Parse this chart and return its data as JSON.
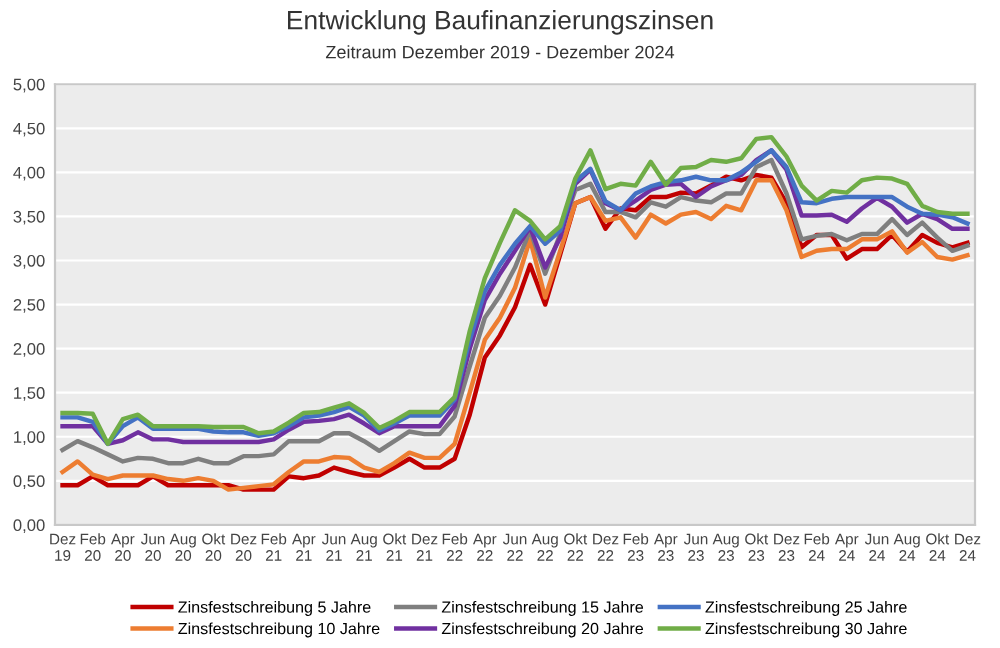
{
  "chart_data": {
    "type": "line",
    "title": "Entwicklung Baufinanzierungszinsen",
    "subtitle": "Zeitraum Dezember 2019 - Dezember 2024",
    "categories": [
      "Dez\n19",
      null,
      "Feb\n20",
      null,
      "Apr\n20",
      null,
      "Jun\n20",
      null,
      "Aug\n20",
      null,
      "Okt\n20",
      null,
      "Dez\n20",
      null,
      "Feb\n21",
      null,
      "Apr\n21",
      null,
      "Jun\n21",
      null,
      "Aug\n21",
      null,
      "Okt\n21",
      null,
      "Dez\n21",
      null,
      "Feb\n22",
      null,
      "Apr\n22",
      null,
      "Jun\n22",
      null,
      "Aug\n22",
      null,
      "Okt\n22",
      null,
      "Dez\n22",
      null,
      "Feb\n23",
      null,
      "Apr\n23",
      null,
      "Jun\n23",
      null,
      "Aug\n23",
      null,
      "Okt\n23",
      null,
      "Dez\n23",
      null,
      "Feb\n24",
      null,
      "Apr\n24",
      null,
      "Jun\n24",
      null,
      "Aug\n24",
      null,
      "Okt\n24",
      null,
      "Dez\n24"
    ],
    "series": [
      {
        "name": "Zinsfestschreibung 5 Jahre",
        "color": "#c00000",
        "values": [
          0.45,
          0.45,
          0.55,
          0.45,
          0.45,
          0.45,
          0.55,
          0.45,
          0.45,
          0.45,
          0.45,
          0.45,
          0.4,
          0.4,
          0.4,
          0.55,
          0.53,
          0.56,
          0.65,
          0.6,
          0.56,
          0.56,
          0.65,
          0.75,
          0.65,
          0.65,
          0.75,
          1.25,
          1.9,
          2.15,
          2.47,
          2.95,
          2.5,
          3.07,
          3.65,
          3.72,
          3.36,
          3.59,
          3.57,
          3.72,
          3.72,
          3.77,
          3.76,
          3.85,
          3.95,
          3.91,
          3.97,
          3.94,
          3.65,
          3.15,
          3.29,
          3.29,
          3.02,
          3.13,
          3.13,
          3.29,
          3.1,
          3.29,
          3.2,
          3.15,
          3.2
        ]
      },
      {
        "name": "Zinsfestschreibung 10 Jahre",
        "color": "#ed7d31",
        "values": [
          0.6,
          0.72,
          0.57,
          0.52,
          0.56,
          0.56,
          0.56,
          0.52,
          0.5,
          0.53,
          0.5,
          0.4,
          0.42,
          0.44,
          0.46,
          0.6,
          0.72,
          0.72,
          0.77,
          0.76,
          0.65,
          0.6,
          0.7,
          0.82,
          0.76,
          0.76,
          0.92,
          1.5,
          2.1,
          2.35,
          2.69,
          3.24,
          2.58,
          3.11,
          3.65,
          3.72,
          3.45,
          3.49,
          3.26,
          3.52,
          3.42,
          3.52,
          3.55,
          3.47,
          3.62,
          3.57,
          3.91,
          3.91,
          3.57,
          3.04,
          3.11,
          3.13,
          3.13,
          3.24,
          3.24,
          3.33,
          3.09,
          3.21,
          3.04,
          3.01,
          3.06
        ]
      },
      {
        "name": "Zinsfestschreibung 15 Jahre",
        "color": "#7f7f7f",
        "values": [
          0.85,
          0.95,
          0.88,
          0.8,
          0.72,
          0.76,
          0.75,
          0.7,
          0.7,
          0.75,
          0.7,
          0.7,
          0.78,
          0.78,
          0.8,
          0.95,
          0.95,
          0.95,
          1.04,
          1.04,
          0.95,
          0.84,
          0.95,
          1.06,
          1.03,
          1.03,
          1.23,
          1.8,
          2.35,
          2.6,
          2.92,
          3.34,
          2.85,
          3.3,
          3.8,
          3.87,
          3.55,
          3.55,
          3.49,
          3.66,
          3.61,
          3.72,
          3.68,
          3.66,
          3.76,
          3.76,
          4.06,
          4.14,
          3.76,
          3.24,
          3.28,
          3.3,
          3.23,
          3.3,
          3.3,
          3.47,
          3.29,
          3.43,
          3.26,
          3.11,
          3.17
        ]
      },
      {
        "name": "Zinsfestschreibung 20 Jahre",
        "color": "#7030a0",
        "values": [
          1.12,
          1.12,
          1.12,
          0.92,
          0.96,
          1.05,
          0.97,
          0.97,
          0.94,
          0.94,
          0.94,
          0.94,
          0.94,
          0.94,
          0.97,
          1.08,
          1.17,
          1.18,
          1.2,
          1.25,
          1.15,
          1.04,
          1.12,
          1.12,
          1.12,
          1.12,
          1.35,
          2.0,
          2.55,
          2.85,
          3.11,
          3.38,
          2.92,
          3.26,
          3.87,
          4.03,
          3.65,
          3.57,
          3.68,
          3.8,
          3.86,
          3.87,
          3.72,
          3.84,
          3.91,
          3.97,
          4.14,
          4.25,
          4.03,
          3.51,
          3.51,
          3.52,
          3.44,
          3.59,
          3.71,
          3.61,
          3.43,
          3.53,
          3.47,
          3.36,
          3.36
        ]
      },
      {
        "name": "Zinsfestschreibung 25 Jahre",
        "color": "#4472c4",
        "values": [
          1.22,
          1.22,
          1.17,
          0.92,
          1.12,
          1.22,
          1.09,
          1.09,
          1.09,
          1.09,
          1.06,
          1.05,
          1.05,
          1.01,
          1.04,
          1.12,
          1.22,
          1.24,
          1.28,
          1.34,
          1.24,
          1.07,
          1.15,
          1.24,
          1.24,
          1.24,
          1.42,
          2.1,
          2.65,
          2.95,
          3.19,
          3.39,
          3.19,
          3.34,
          3.9,
          4.04,
          3.67,
          3.57,
          3.76,
          3.84,
          3.89,
          3.91,
          3.95,
          3.91,
          3.91,
          4.0,
          4.12,
          4.25,
          4.06,
          3.66,
          3.65,
          3.7,
          3.72,
          3.72,
          3.72,
          3.72,
          3.61,
          3.53,
          3.52,
          3.49,
          3.42
        ]
      },
      {
        "name": "Zinsfestschreibung 30 Jahre",
        "color": "#70ad47",
        "values": [
          1.27,
          1.27,
          1.26,
          0.92,
          1.2,
          1.25,
          1.12,
          1.12,
          1.12,
          1.12,
          1.11,
          1.11,
          1.11,
          1.04,
          1.06,
          1.16,
          1.27,
          1.28,
          1.33,
          1.38,
          1.27,
          1.1,
          1.18,
          1.28,
          1.28,
          1.28,
          1.45,
          2.2,
          2.8,
          3.2,
          3.57,
          3.45,
          3.24,
          3.39,
          3.93,
          4.25,
          3.81,
          3.87,
          3.85,
          4.12,
          3.86,
          4.05,
          4.06,
          4.14,
          4.12,
          4.16,
          4.38,
          4.4,
          4.18,
          3.85,
          3.68,
          3.79,
          3.77,
          3.91,
          3.94,
          3.93,
          3.87,
          3.62,
          3.55,
          3.53,
          3.53
        ]
      }
    ],
    "ylim": [
      0,
      5
    ],
    "yticks": [
      {
        "value": 0,
        "label": "0,00"
      },
      {
        "value": 0.5,
        "label": "0,50"
      },
      {
        "value": 1,
        "label": "1,00"
      },
      {
        "value": 1.5,
        "label": "1,50"
      },
      {
        "value": 2,
        "label": "2,00"
      },
      {
        "value": 2.5,
        "label": "2,50"
      },
      {
        "value": 3,
        "label": "3,00"
      },
      {
        "value": 3.5,
        "label": "3,50"
      },
      {
        "value": 4,
        "label": "4,00"
      },
      {
        "value": 4.5,
        "label": "4,50"
      },
      {
        "value": 5,
        "label": "5,00"
      }
    ],
    "grid": "y",
    "legend": "bottom",
    "marker": "none",
    "line_style": "solid"
  }
}
